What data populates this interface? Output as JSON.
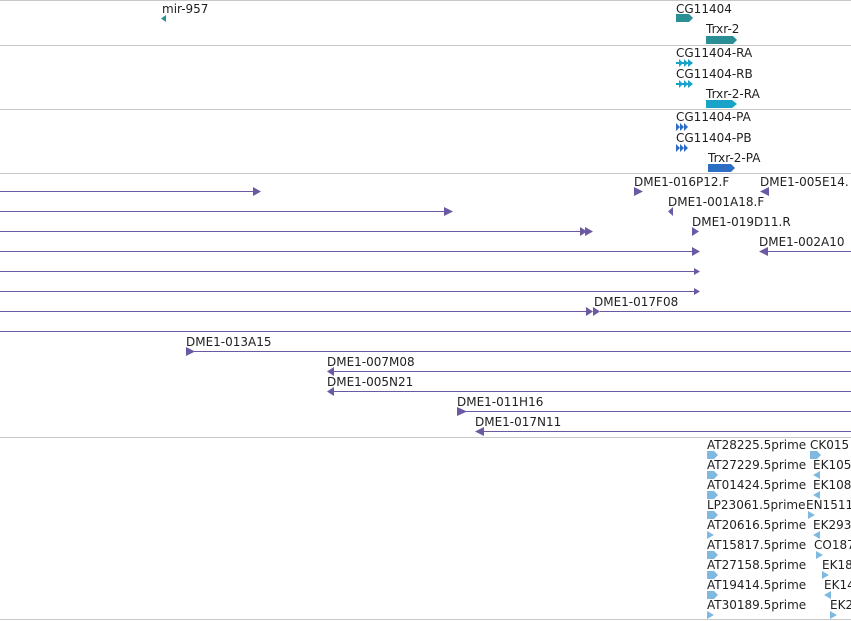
{
  "colors": {
    "gene": "#2a8f94",
    "transcript": "#1aa3c8",
    "protein": "#2d6ec4",
    "clone": "#6b5aa3",
    "est": "#7fb8e0",
    "separator": "#c8c8c8"
  },
  "tracks": {
    "genes": [
      {
        "label": "mir-957",
        "glyph": "small-left-arrow-icon"
      },
      {
        "label": "CG11404",
        "glyph": "right-arrow-block-icon"
      },
      {
        "label": "Trxr-2",
        "glyph": "right-arrow-block-icon"
      }
    ],
    "transcripts": [
      {
        "label": "CG11404-RA",
        "glyph": "double-chevron-right-icon"
      },
      {
        "label": "CG11404-RB",
        "glyph": "double-chevron-right-icon"
      },
      {
        "label": "Trxr-2-RA",
        "glyph": "right-arrow-block-icon"
      }
    ],
    "proteins": [
      {
        "label": "CG11404-PA",
        "glyph": "double-chevron-right-icon"
      },
      {
        "label": "CG11404-PB",
        "glyph": "double-chevron-right-icon"
      },
      {
        "label": "Trxr-2-PA",
        "glyph": "right-arrow-block-icon"
      }
    ],
    "clones": [
      "DME1-016P12.F",
      "DME1-005E14.",
      "DME1-001A18.F",
      "DME1-019D11.R",
      "DME1-002A10",
      "DME1-017F08",
      "DME1-013A15",
      "DME1-007M08",
      "DME1-005N21",
      "DME1-011H16",
      "DME1-017N11"
    ],
    "ests_left": [
      "AT28225.5prime",
      "AT27229.5prime",
      "AT01424.5prime",
      "LP23061.5prime",
      "AT20616.5prime",
      "AT15817.5prime",
      "AT27158.5prime",
      "AT19414.5prime",
      "AT30189.5prime"
    ],
    "ests_right": [
      "CK015",
      "EK105",
      "EK108",
      "EN1511",
      "EK293",
      "CO187",
      "EK18",
      "EK14",
      "EK2"
    ]
  }
}
